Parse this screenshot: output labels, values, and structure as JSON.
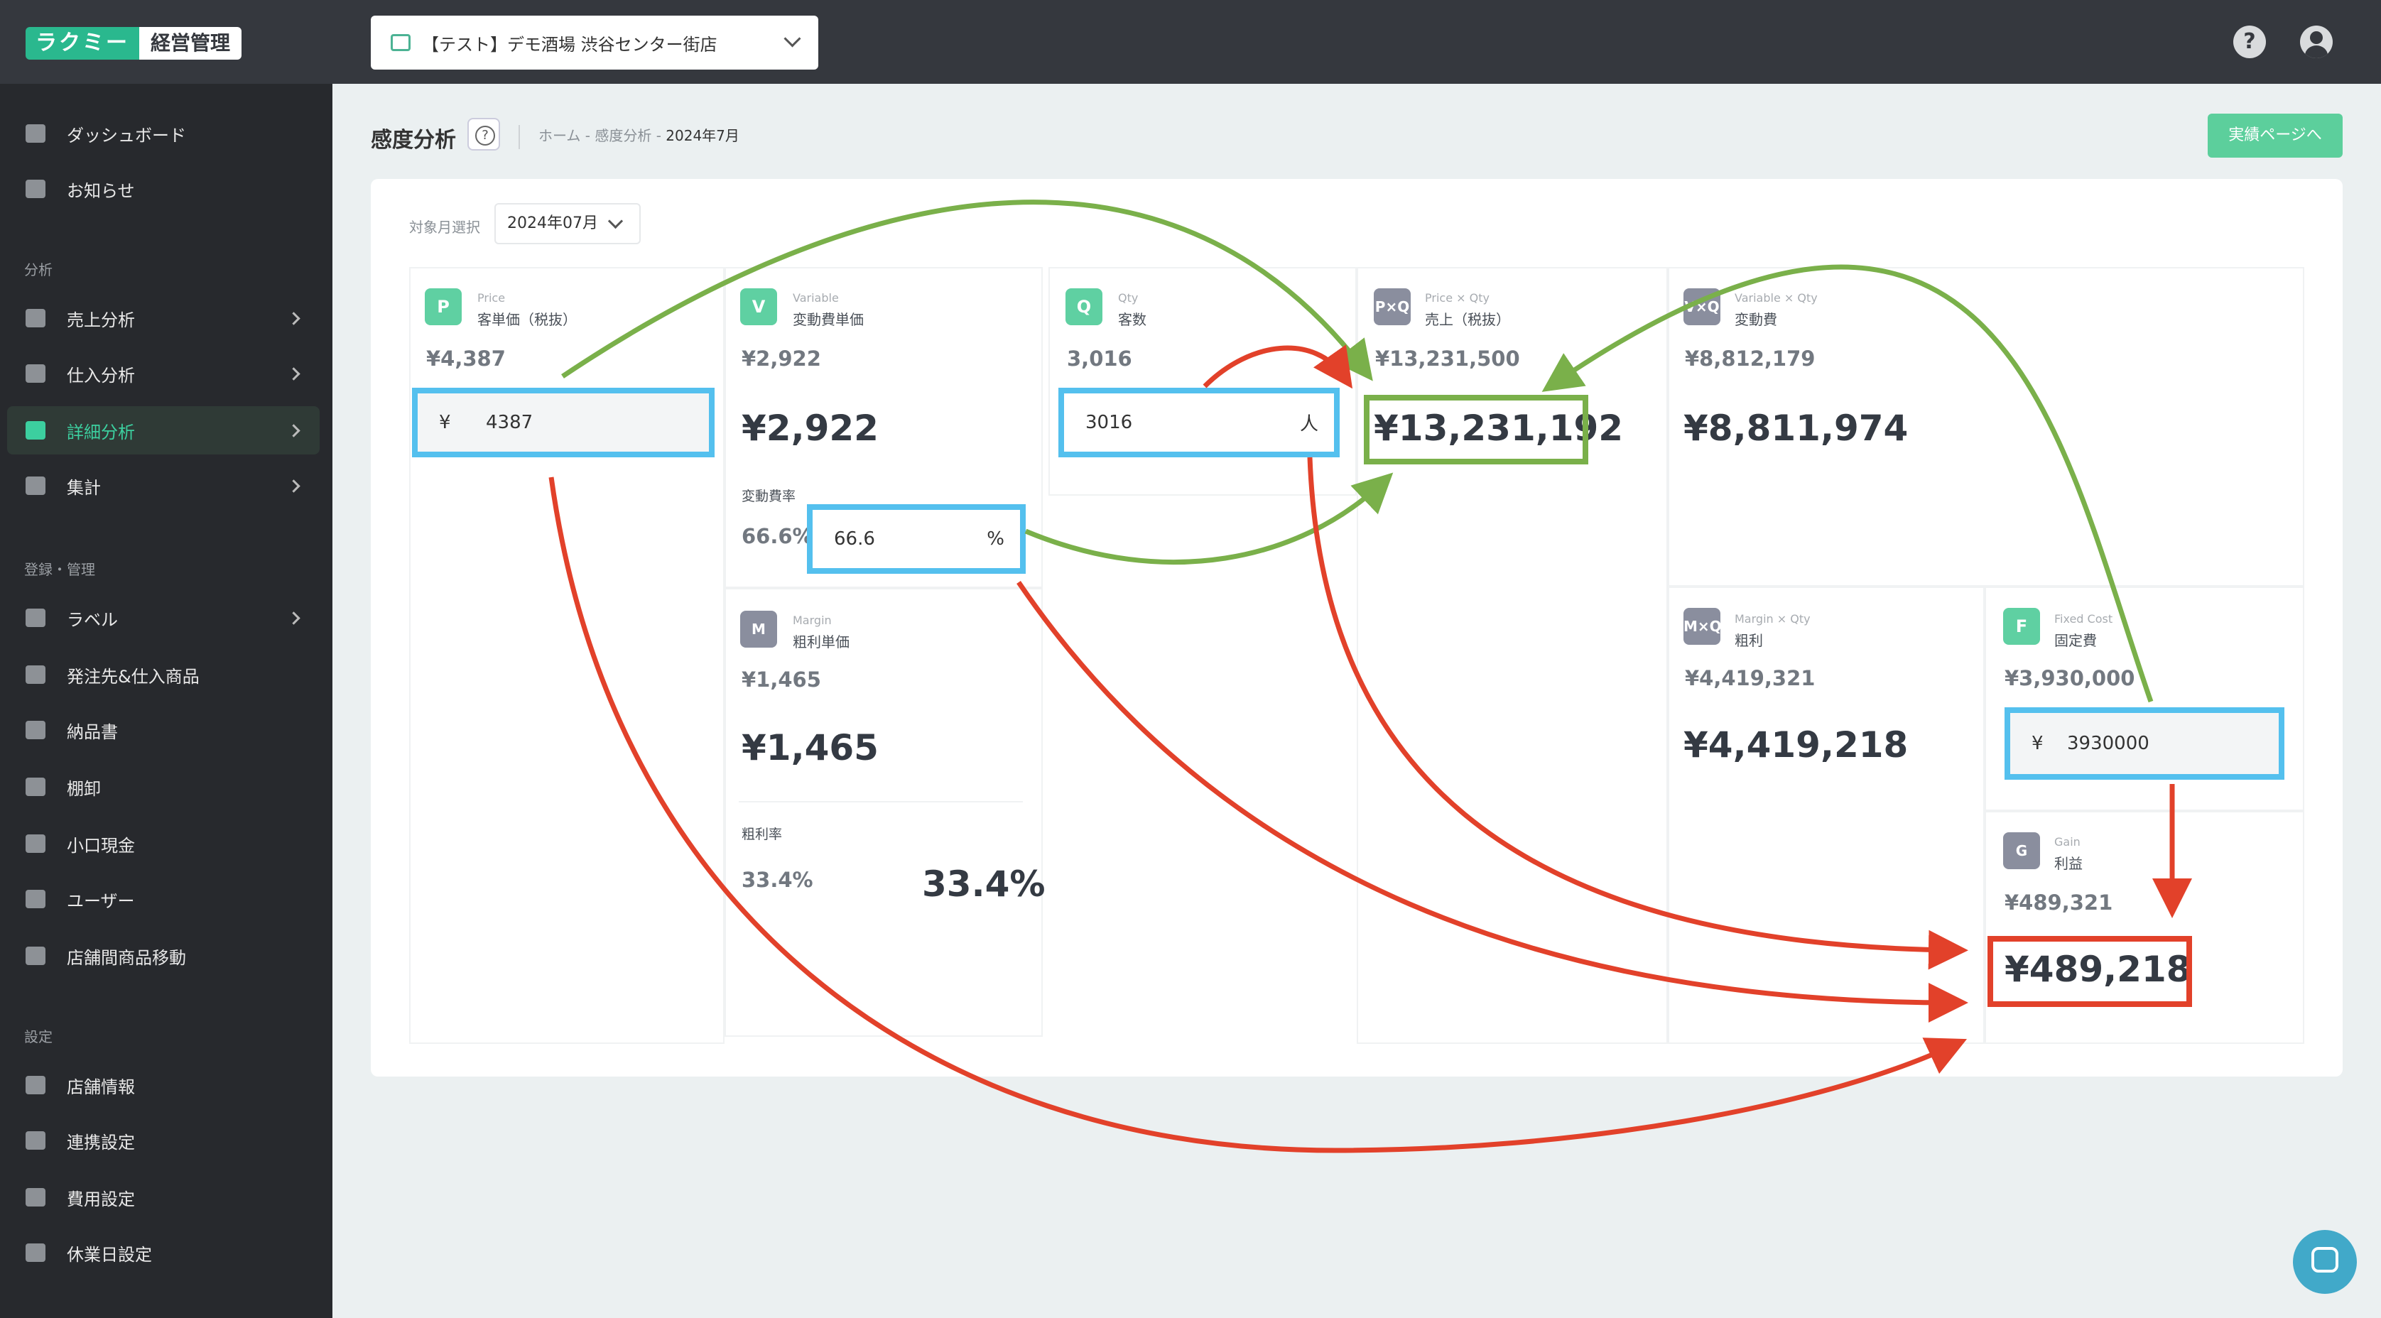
{
  "app": {
    "logo_main": "ラクミー",
    "logo_sub": "経営管理",
    "store": "【テスト】デモ酒場 渋谷センター街店",
    "help_label": "?"
  },
  "sidebar": {
    "top_items": [
      {
        "label": "ダッシュボード"
      },
      {
        "label": "お知らせ"
      }
    ],
    "sections": [
      {
        "title": "分析",
        "items": [
          {
            "label": "売上分析"
          },
          {
            "label": "仕入分析"
          },
          {
            "label": "詳細分析"
          },
          {
            "label": "集計"
          }
        ]
      },
      {
        "title": "登録・管理",
        "items": [
          {
            "label": "ラベル"
          },
          {
            "label": "発注先&仕入商品"
          },
          {
            "label": "納品書"
          },
          {
            "label": "棚卸"
          },
          {
            "label": "小口現金"
          },
          {
            "label": "ユーザー"
          },
          {
            "label": "店舗間商品移動"
          }
        ]
      },
      {
        "title": "設定",
        "items": [
          {
            "label": "店舗情報"
          },
          {
            "label": "連携設定"
          },
          {
            "label": "費用設定"
          },
          {
            "label": "休業日設定"
          }
        ]
      }
    ],
    "active_item": "詳細分析"
  },
  "header": {
    "title": "感度分析",
    "breadcrumb": [
      "ホーム",
      "感度分析",
      "2024年7月"
    ],
    "breadcrumb_sep": " - ",
    "results_button": "実績ページへ"
  },
  "filter": {
    "label": "対象月選択",
    "month": "2024年07月"
  },
  "cards": {
    "price": {
      "badge": "P",
      "en": "Price",
      "ja": "客単価（税抜）",
      "current": "¥4,387",
      "input_prefix": "¥",
      "input_value": "4387"
    },
    "variable": {
      "badge": "V",
      "en": "Variable",
      "ja": "変動費単価",
      "current": "¥2,922",
      "simulated": "¥2,922",
      "rate_label": "変動費率",
      "rate_current": "66.6%",
      "rate_input": "66.6",
      "rate_suffix": "%"
    },
    "qty": {
      "badge": "Q",
      "en": "Qty",
      "ja": "客数",
      "current": "3,016",
      "input_value": "3016",
      "input_suffix": "人"
    },
    "sales": {
      "badge": "P×Q",
      "en": "Price × Qty",
      "ja": "売上（税抜）",
      "current": "¥13,231,500",
      "simulated": "¥13,231,192"
    },
    "varcost": {
      "badge": "V×Q",
      "en": "Variable × Qty",
      "ja": "変動費",
      "current": "¥8,812,179",
      "simulated": "¥8,811,974"
    },
    "margin": {
      "badge": "M",
      "en": "Margin",
      "ja": "粗利単価",
      "current": "¥1,465",
      "simulated": "¥1,465",
      "rate_label": "粗利率",
      "rate_current": "33.4%",
      "rate_simulated": "33.4%"
    },
    "gross": {
      "badge": "M×Q",
      "en": "Margin × Qty",
      "ja": "粗利",
      "current": "¥4,419,321",
      "simulated": "¥4,419,218"
    },
    "fixed": {
      "badge": "F",
      "en": "Fixed Cost",
      "ja": "固定費",
      "current": "¥3,930,000",
      "input_prefix": "¥",
      "input_value": "3930000"
    },
    "gain": {
      "badge": "G",
      "en": "Gain",
      "ja": "利益",
      "current": "¥489,321",
      "simulated": "¥489,218"
    }
  },
  "colors": {
    "input_highlight": "#54c0ee",
    "sales_highlight": "#7ab04a",
    "profit_highlight": "#e2412a",
    "accent": "#5ccf9c"
  }
}
